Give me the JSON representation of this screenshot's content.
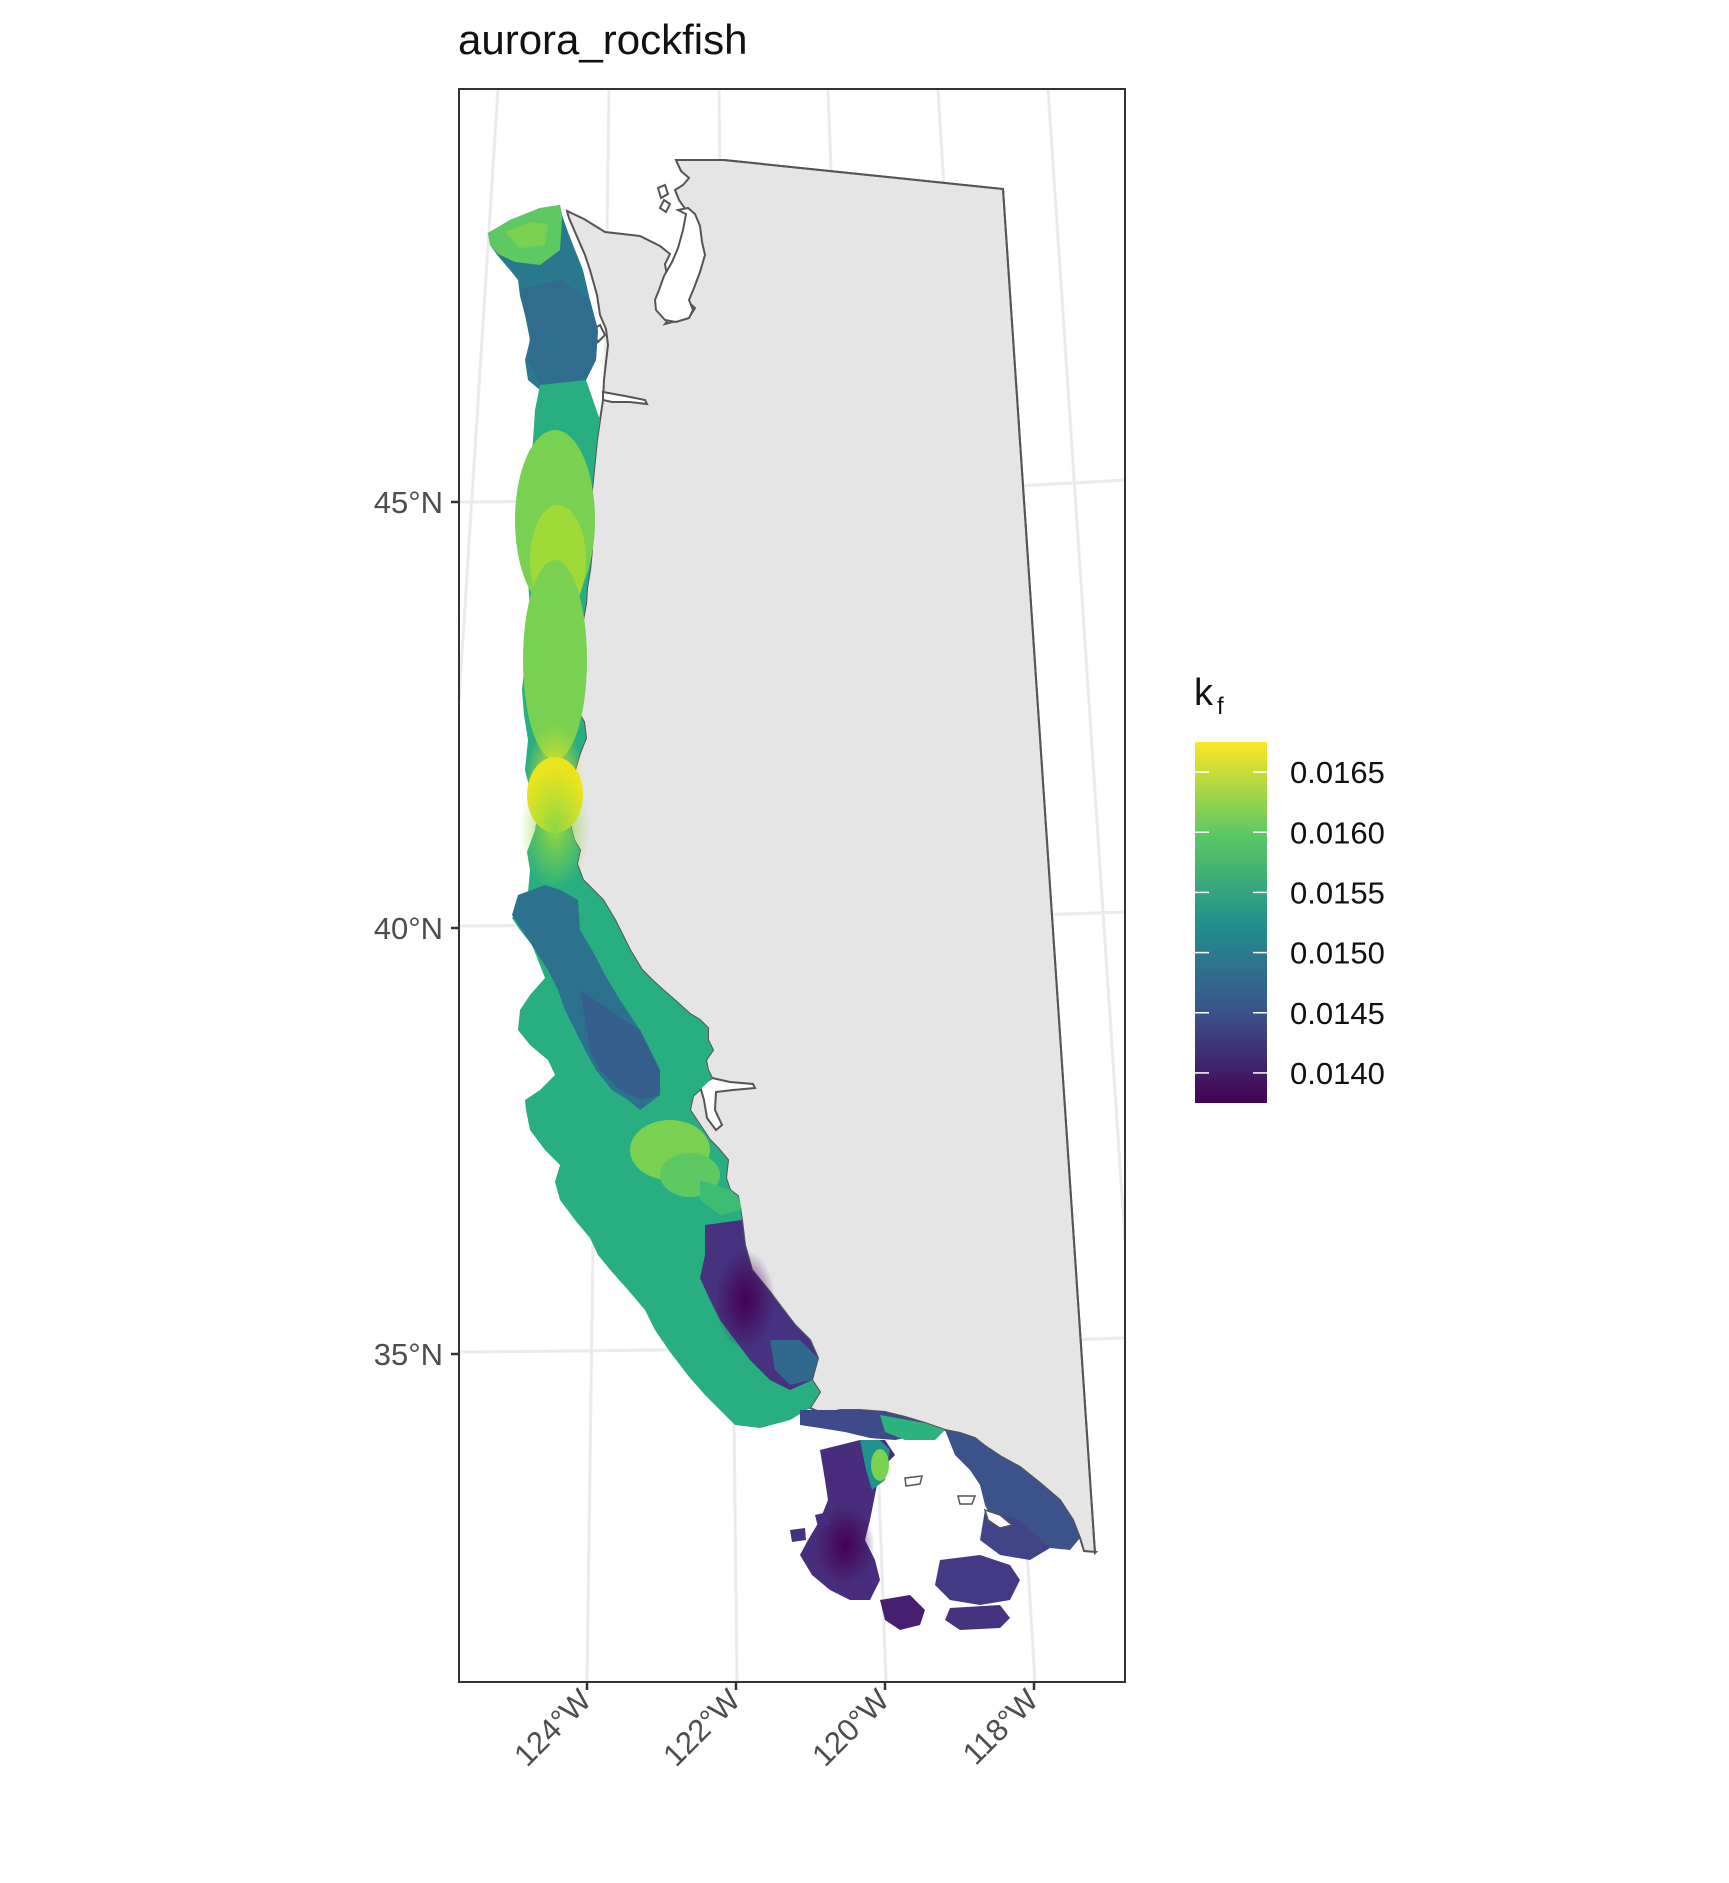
{
  "title": "aurora_rockfish",
  "axes": {
    "y_ticks": [
      {
        "label": "45°N",
        "lat": 45
      },
      {
        "label": "40°N",
        "lat": 40
      },
      {
        "label": "35°N",
        "lat": 35
      }
    ],
    "x_ticks": [
      {
        "label": "124°W",
        "lon": -124
      },
      {
        "label": "122°W",
        "lon": -122
      },
      {
        "label": "120°W",
        "lon": -120
      },
      {
        "label": "118°W",
        "lon": -118
      }
    ],
    "graticule": "on"
  },
  "legend": {
    "title_main": "k",
    "title_sub": "f",
    "placement": "right",
    "colors": [
      "#440154",
      "#3b528b",
      "#21918c",
      "#5ec962",
      "#fde725"
    ],
    "range": [
      0.01375,
      0.01675
    ],
    "labels": [
      {
        "label": "0.0165",
        "value": 0.0165
      },
      {
        "label": "0.0160",
        "value": 0.016
      },
      {
        "label": "0.0155",
        "value": 0.0155
      },
      {
        "label": "0.0150",
        "value": 0.015
      },
      {
        "label": "0.0145",
        "value": 0.0145
      },
      {
        "label": "0.0140",
        "value": 0.014
      }
    ]
  },
  "colors": {
    "land_fill": "#e5e5e5",
    "land_stroke": "#555555",
    "grid": "#ebebeb",
    "panel_border": "#333333"
  }
}
